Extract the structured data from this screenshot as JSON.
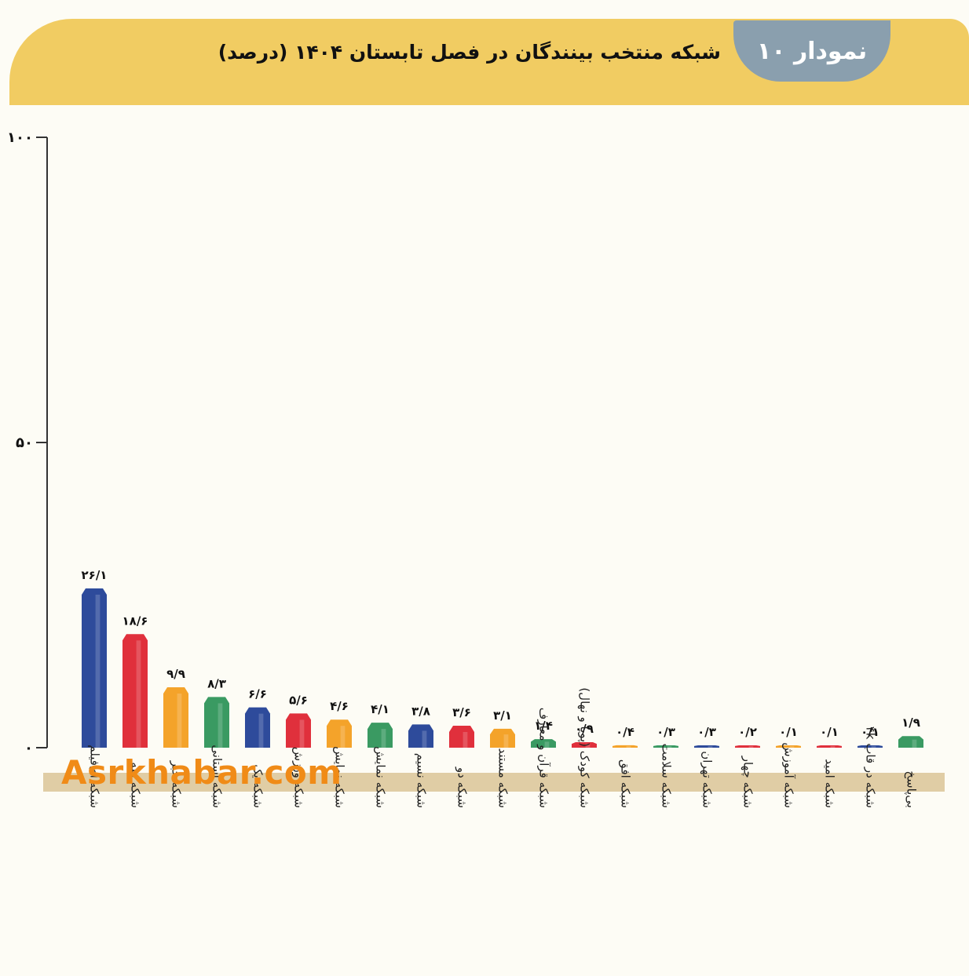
{
  "header": {
    "badge": "نمودار ۱۰",
    "title": "شبکه منتخب بینندگان در فصل تابستان ۱۴۰۴ (درصد)"
  },
  "watermark": "Asrkhabar.com",
  "chart_data": {
    "type": "bar",
    "title": "شبکه منتخب بینندگان در فصل تابستان ۱۴۰۴ (درصد)",
    "ylim": [
      0,
      100
    ],
    "yticks": [
      {
        "value": 0,
        "label": "۰"
      },
      {
        "value": 50,
        "label": "۵۰"
      },
      {
        "value": 100,
        "label": "۱۰۰"
      }
    ],
    "grid": false,
    "legend": "none",
    "categories": [
      "شبکه آی‌فیلم",
      "شبکه سه",
      "شبکه خبر",
      "شبکه استانی",
      "شبکه یک",
      "شبکه ورزش",
      "شبکه نمایش",
      "شبکه نمایش",
      "شبکه نسیم",
      "شبکه دو",
      "شبکه مستند",
      "شبکه قرآن و معارف",
      "شبکه کودک (پویا و نهال)",
      "شبکه افق",
      "شبکه سلامت",
      "شبکه تهران",
      "شبکه چهار",
      "شبکه آموزش",
      "شبکه امید",
      "شبکه در قاب ۴k",
      "بی‌پاسخ"
    ],
    "values": [
      26.1,
      18.6,
      9.9,
      8.3,
      6.6,
      5.6,
      4.6,
      4.1,
      3.8,
      3.6,
      3.1,
      1.4,
      0.9,
      0.4,
      0.3,
      0.3,
      0.2,
      0.1,
      0.1,
      0.1,
      1.9
    ],
    "value_labels": [
      "۲۶/۱",
      "۱۸/۶",
      "۹/۹",
      "۸/۳",
      "۶/۶",
      "۵/۶",
      "۴/۶",
      "۴/۱",
      "۳/۸",
      "۳/۶",
      "۳/۱",
      "۱/۴",
      "۰/۹",
      "۰/۴",
      "۰/۳",
      "۰/۳",
      "۰/۲",
      "۰/۱",
      "۰/۱",
      "۰/۱",
      "۱/۹"
    ],
    "colors": [
      "#2e4b9b",
      "#e0303c",
      "#f4a32a",
      "#3a9a62",
      "#2e4b9b",
      "#e0303c",
      "#f4a32a",
      "#3a9a62",
      "#2e4b9b",
      "#e0303c",
      "#f4a32a",
      "#3a9a62",
      "#e0303c",
      "#f4a32a",
      "#3a9a62",
      "#2e4b9b",
      "#e0303c",
      "#f4a32a",
      "#e0303c",
      "#2e4b9b",
      "#3a9a62"
    ]
  }
}
